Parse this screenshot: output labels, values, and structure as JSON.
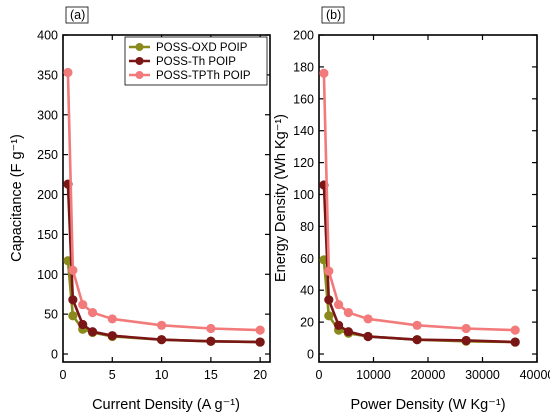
{
  "chart_data": [
    {
      "type": "line",
      "panel_label": "(a)",
      "xlabel": "Current Density (A g⁻¹)",
      "ylabel": "Capacitance (F g⁻¹)",
      "xlim": [
        0,
        21
      ],
      "ylim": [
        -10,
        400
      ],
      "xticks": [
        0,
        5,
        10,
        15,
        20
      ],
      "yticks": [
        0,
        50,
        100,
        150,
        200,
        250,
        300,
        350,
        400
      ],
      "legend_position": "top-right",
      "grid": false,
      "series": [
        {
          "name": "POSS-OXD POIP",
          "color": "#8a8a1c",
          "x": [
            0.5,
            1,
            2,
            3,
            5,
            10,
            15,
            20
          ],
          "y": [
            117,
            48,
            31,
            27,
            22,
            18,
            16,
            15
          ]
        },
        {
          "name": "POSS-Th POIP",
          "color": "#7a1616",
          "x": [
            0.5,
            1,
            2,
            3,
            5,
            10,
            15,
            20
          ],
          "y": [
            213,
            68,
            37,
            28,
            23,
            18,
            16,
            15
          ]
        },
        {
          "name": "POSS-TPTh POIP",
          "color": "#f27a7a",
          "x": [
            0.5,
            1,
            2,
            3,
            5,
            10,
            15,
            20
          ],
          "y": [
            353,
            105,
            62,
            52,
            44,
            36,
            32,
            30
          ]
        }
      ]
    },
    {
      "type": "line",
      "panel_label": "(b)",
      "xlabel": "Power Density (W Kg⁻¹)",
      "ylabel": "Energy Density (Wh Kg⁻¹)",
      "xlim": [
        0,
        40000
      ],
      "ylim": [
        -5,
        200
      ],
      "xticks": [
        0,
        10000,
        20000,
        30000,
        40000
      ],
      "yticks": [
        0,
        20,
        40,
        60,
        80,
        100,
        120,
        140,
        160,
        180,
        200
      ],
      "grid": false,
      "series": [
        {
          "name": "POSS-OXD POIP",
          "color": "#8a8a1c",
          "x": [
            900,
            1800,
            3600,
            5400,
            9000,
            18000,
            27000,
            36000
          ],
          "y": [
            59,
            24,
            15,
            13,
            11,
            9,
            8,
            7.5
          ]
        },
        {
          "name": "POSS-Th POIP",
          "color": "#7a1616",
          "x": [
            900,
            1800,
            3600,
            5400,
            9000,
            18000,
            27000,
            36000
          ],
          "y": [
            106,
            34,
            18,
            14,
            11,
            9,
            8.5,
            7.5
          ]
        },
        {
          "name": "POSS-TPTh POIP",
          "color": "#f27a7a",
          "x": [
            900,
            1800,
            3600,
            5400,
            9000,
            18000,
            27000,
            36000
          ],
          "y": [
            176,
            52,
            31,
            26,
            22,
            18,
            16,
            15
          ]
        }
      ]
    }
  ]
}
